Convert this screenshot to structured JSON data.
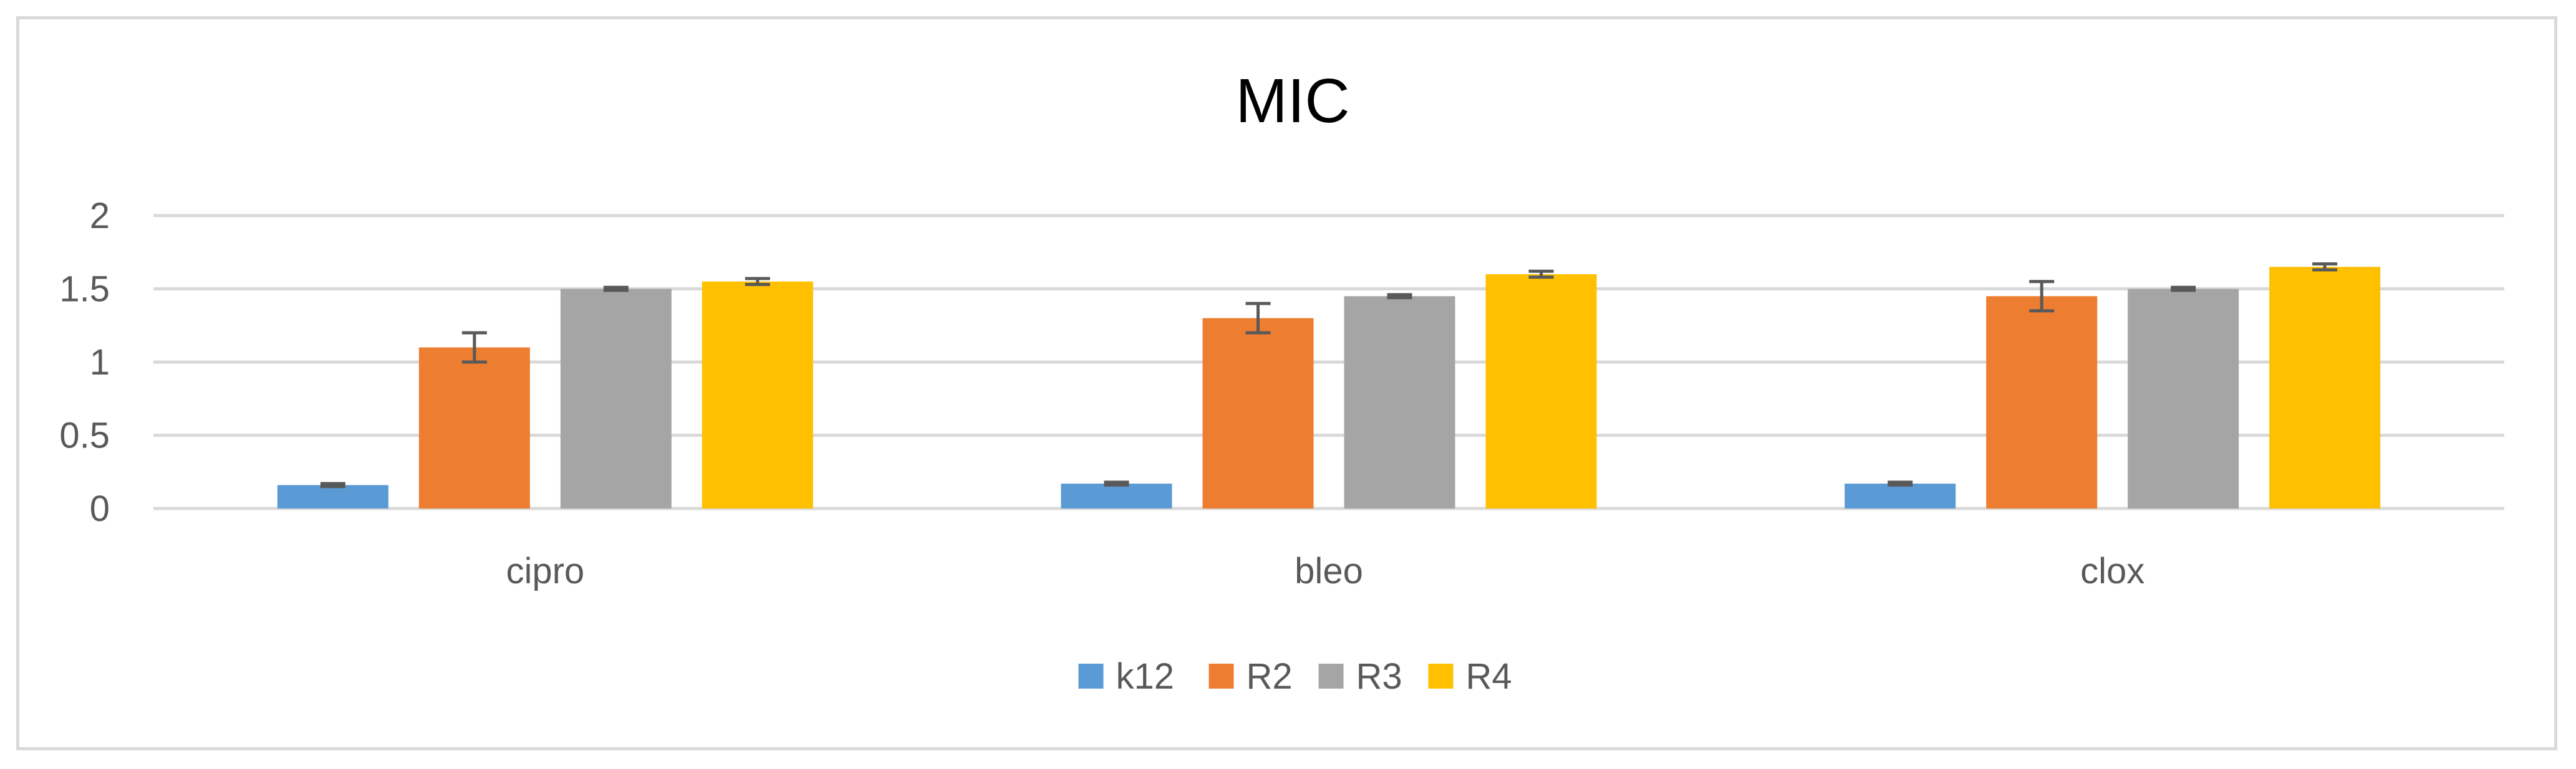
{
  "chart_data": {
    "type": "bar",
    "title": "MIC",
    "xlabel": "",
    "ylabel": "",
    "categories": [
      "cipro",
      "bleo",
      "clox"
    ],
    "ylim": [
      0,
      2
    ],
    "yticks": [
      0,
      0.5,
      1,
      1.5,
      2
    ],
    "ytick_labels": [
      "0",
      "0.5",
      "1",
      "1.5",
      "2"
    ],
    "grid": "horizontal",
    "legend_position": "bottom",
    "series": [
      {
        "name": "k12",
        "color": "#5B9BD5",
        "values": [
          0.16,
          0.17,
          0.17
        ],
        "errors": [
          0.01,
          0.01,
          0.01
        ]
      },
      {
        "name": "R2",
        "color": "#ED7D31",
        "values": [
          1.1,
          1.3,
          1.45
        ],
        "errors": [
          0.1,
          0.1,
          0.1
        ]
      },
      {
        "name": "R3",
        "color": "#A5A5A5",
        "values": [
          1.5,
          1.45,
          1.5
        ],
        "errors": [
          0.01,
          0.01,
          0.01
        ]
      },
      {
        "name": "R4",
        "color": "#FFC000",
        "values": [
          1.55,
          1.6,
          1.65
        ],
        "errors": [
          0.02,
          0.02,
          0.02
        ]
      }
    ],
    "error_bar_color": "#595959",
    "gridline_color": "#d9d9d9"
  }
}
